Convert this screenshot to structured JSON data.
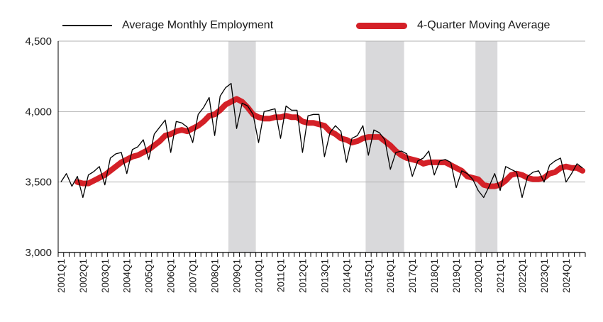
{
  "chart_data": {
    "type": "line",
    "title": "",
    "xlabel": "",
    "ylabel": "",
    "ylim": [
      3000,
      4500
    ],
    "yticks": [
      "3,000",
      "3,500",
      "4,000",
      "4,500"
    ],
    "ytick_values": [
      3000,
      3500,
      4000,
      4500
    ],
    "xtick_labels": [
      "2001Q1",
      "2002Q1",
      "2003Q1",
      "2004Q1",
      "2005Q1",
      "2006Q1",
      "2007Q1",
      "2008Q1",
      "2009Q1",
      "2010Q1",
      "2011Q1",
      "2012Q1",
      "2013Q1",
      "2014Q1",
      "2015Q1",
      "2016Q1",
      "2017Q1",
      "2018Q1",
      "2019Q1",
      "2020Q1",
      "2021Q1",
      "2022Q1",
      "2023Q1",
      "2024Q1"
    ],
    "grid": true,
    "legend_position": "top",
    "recessions": [
      {
        "start": "2008Q4",
        "end": "2009Q4"
      },
      {
        "start": "2015Q1",
        "end": "2016Q3"
      },
      {
        "start": "2020Q1",
        "end": "2020Q4"
      }
    ],
    "series": [
      {
        "name": "Average Monthly Employment",
        "color": "#000000",
        "values": [
          3500,
          3560,
          3470,
          3540,
          3390,
          3550,
          3575,
          3610,
          3480,
          3670,
          3700,
          3710,
          3560,
          3730,
          3750,
          3800,
          3660,
          3840,
          3890,
          3940,
          3710,
          3930,
          3920,
          3890,
          3780,
          3980,
          4030,
          4100,
          3830,
          4110,
          4170,
          4200,
          3880,
          4060,
          4040,
          3980,
          3780,
          4000,
          4010,
          4020,
          3810,
          4040,
          4010,
          4010,
          3710,
          3970,
          3980,
          3980,
          3680,
          3850,
          3900,
          3860,
          3640,
          3810,
          3830,
          3900,
          3690,
          3870,
          3850,
          3800,
          3590,
          3710,
          3720,
          3700,
          3540,
          3650,
          3670,
          3720,
          3550,
          3650,
          3660,
          3640,
          3460,
          3580,
          3560,
          3520,
          3440,
          3390,
          3470,
          3560,
          3440,
          3610,
          3590,
          3570,
          3390,
          3540,
          3570,
          3580,
          3500,
          3620,
          3650,
          3670,
          3500,
          3560,
          3630,
          3600
        ]
      },
      {
        "name": "4-Quarter Moving Average",
        "color": "#d42027",
        "values": [
          null,
          null,
          null,
          3500,
          3490,
          3490,
          3510,
          3530,
          3550,
          3580,
          3610,
          3640,
          3660,
          3680,
          3690,
          3710,
          3730,
          3760,
          3790,
          3830,
          3840,
          3860,
          3870,
          3860,
          3880,
          3900,
          3930,
          3970,
          3980,
          4010,
          4050,
          4070,
          4090,
          4070,
          4030,
          3980,
          3960,
          3950,
          3950,
          3960,
          3960,
          3970,
          3960,
          3960,
          3930,
          3920,
          3920,
          3910,
          3900,
          3860,
          3840,
          3810,
          3800,
          3780,
          3790,
          3810,
          3820,
          3820,
          3820,
          3790,
          3760,
          3720,
          3690,
          3670,
          3660,
          3650,
          3630,
          3640,
          3640,
          3640,
          3640,
          3620,
          3600,
          3580,
          3540,
          3530,
          3520,
          3480,
          3470,
          3470,
          3480,
          3510,
          3550,
          3560,
          3550,
          3530,
          3520,
          3520,
          3530,
          3560,
          3570,
          3600,
          3610,
          3600,
          3600,
          3580
        ]
      }
    ]
  }
}
